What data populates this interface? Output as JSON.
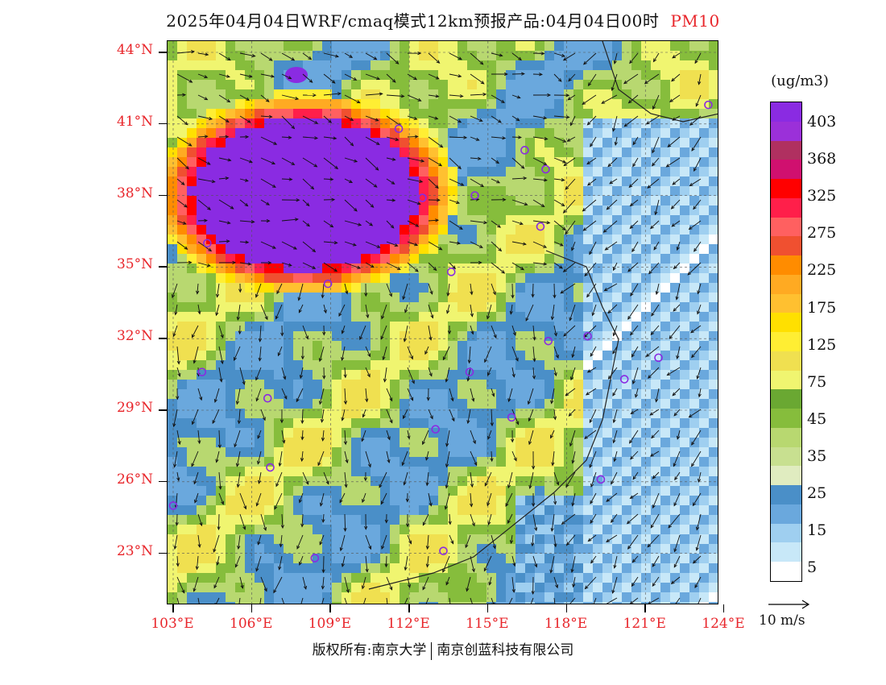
{
  "title": {
    "main": "2025年04月04日WRF/cmaq模式12km预报产品:04月04日00时",
    "variable": "PM10"
  },
  "map": {
    "lat_labels": [
      "44°N",
      "41°N",
      "38°N",
      "35°N",
      "32°N",
      "29°N",
      "26°N",
      "23°N"
    ],
    "lon_labels": [
      "103°E",
      "106°E",
      "109°E",
      "112°E",
      "115°E",
      "118°E",
      "121°E",
      "124°E"
    ]
  },
  "legend": {
    "unit": "(ug/m3)",
    "ticks": [
      "403",
      "368",
      "325",
      "275",
      "225",
      "175",
      "125",
      "75",
      "45",
      "35",
      "25",
      "15",
      "5"
    ],
    "colors": [
      "#8a2be2",
      "#9b30d9",
      "#b03060",
      "#d0106f",
      "#ff0000",
      "#ff1f4a",
      "#ff6060",
      "#f05030",
      "#ff8c00",
      "#ffaa22",
      "#ffc030",
      "#ffe000",
      "#ffee33",
      "#f0e050",
      "#f0f570",
      "#6aa832",
      "#86bd3c",
      "#b8d870",
      "#c8e090",
      "#e0ecc0",
      "#4a8fc8",
      "#6aa8dd",
      "#9fcff0",
      "#c8e8f8",
      "#ffffff"
    ]
  },
  "wind_reference": {
    "label": "10 m/s"
  },
  "copyright": {
    "left": "版权所有:南京大学",
    "right": "南京创蓝科技有限公司"
  },
  "cities": [
    {
      "lon": 103.0,
      "lat": 25.0
    },
    {
      "lon": 104.3,
      "lat": 36.0
    },
    {
      "lon": 104.1,
      "lat": 30.6
    },
    {
      "lon": 106.6,
      "lat": 29.5
    },
    {
      "lon": 106.7,
      "lat": 26.6
    },
    {
      "lon": 106.2,
      "lat": 38.4
    },
    {
      "lon": 108.9,
      "lat": 34.3
    },
    {
      "lon": 108.4,
      "lat": 22.8
    },
    {
      "lon": 111.6,
      "lat": 40.8
    },
    {
      "lon": 112.5,
      "lat": 37.9
    },
    {
      "lon": 113.6,
      "lat": 34.8
    },
    {
      "lon": 114.3,
      "lat": 30.6
    },
    {
      "lon": 113.0,
      "lat": 28.2
    },
    {
      "lon": 113.3,
      "lat": 23.1
    },
    {
      "lon": 114.5,
      "lat": 38.0
    },
    {
      "lon": 116.4,
      "lat": 39.9
    },
    {
      "lon": 117.2,
      "lat": 39.1
    },
    {
      "lon": 117.0,
      "lat": 36.7
    },
    {
      "lon": 117.3,
      "lat": 31.9
    },
    {
      "lon": 118.8,
      "lat": 32.1
    },
    {
      "lon": 120.2,
      "lat": 30.3
    },
    {
      "lon": 119.3,
      "lat": 26.1
    },
    {
      "lon": 115.9,
      "lat": 28.7
    },
    {
      "lon": 121.5,
      "lat": 31.2
    },
    {
      "lon": 123.4,
      "lat": 41.8
    }
  ]
}
